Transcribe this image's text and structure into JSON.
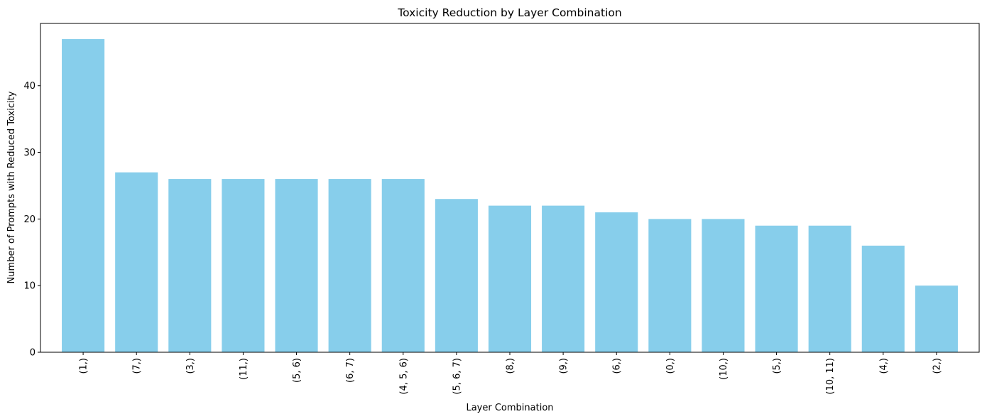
{
  "chart_data": {
    "type": "bar",
    "title": "Toxicity Reduction by Layer Combination",
    "xlabel": "Layer Combination",
    "ylabel": "Number of Prompts with Reduced Toxicity",
    "categories": [
      "(1,)",
      "(7,)",
      "(3,)",
      "(11,)",
      "(5, 6)",
      "(6, 7)",
      "(4, 5, 6)",
      "(5, 6, 7)",
      "(8,)",
      "(9,)",
      "(6,)",
      "(0,)",
      "(10,)",
      "(5,)",
      "(10, 11)",
      "(4,)",
      "(2,)"
    ],
    "values": [
      47,
      27,
      26,
      26,
      26,
      26,
      26,
      23,
      22,
      22,
      21,
      20,
      20,
      19,
      19,
      16,
      10
    ],
    "ylim": [
      0,
      49.35
    ],
    "yticks": [
      0,
      10,
      20,
      30,
      40
    ],
    "grid": false,
    "bar_color": "#87ceeb"
  }
}
